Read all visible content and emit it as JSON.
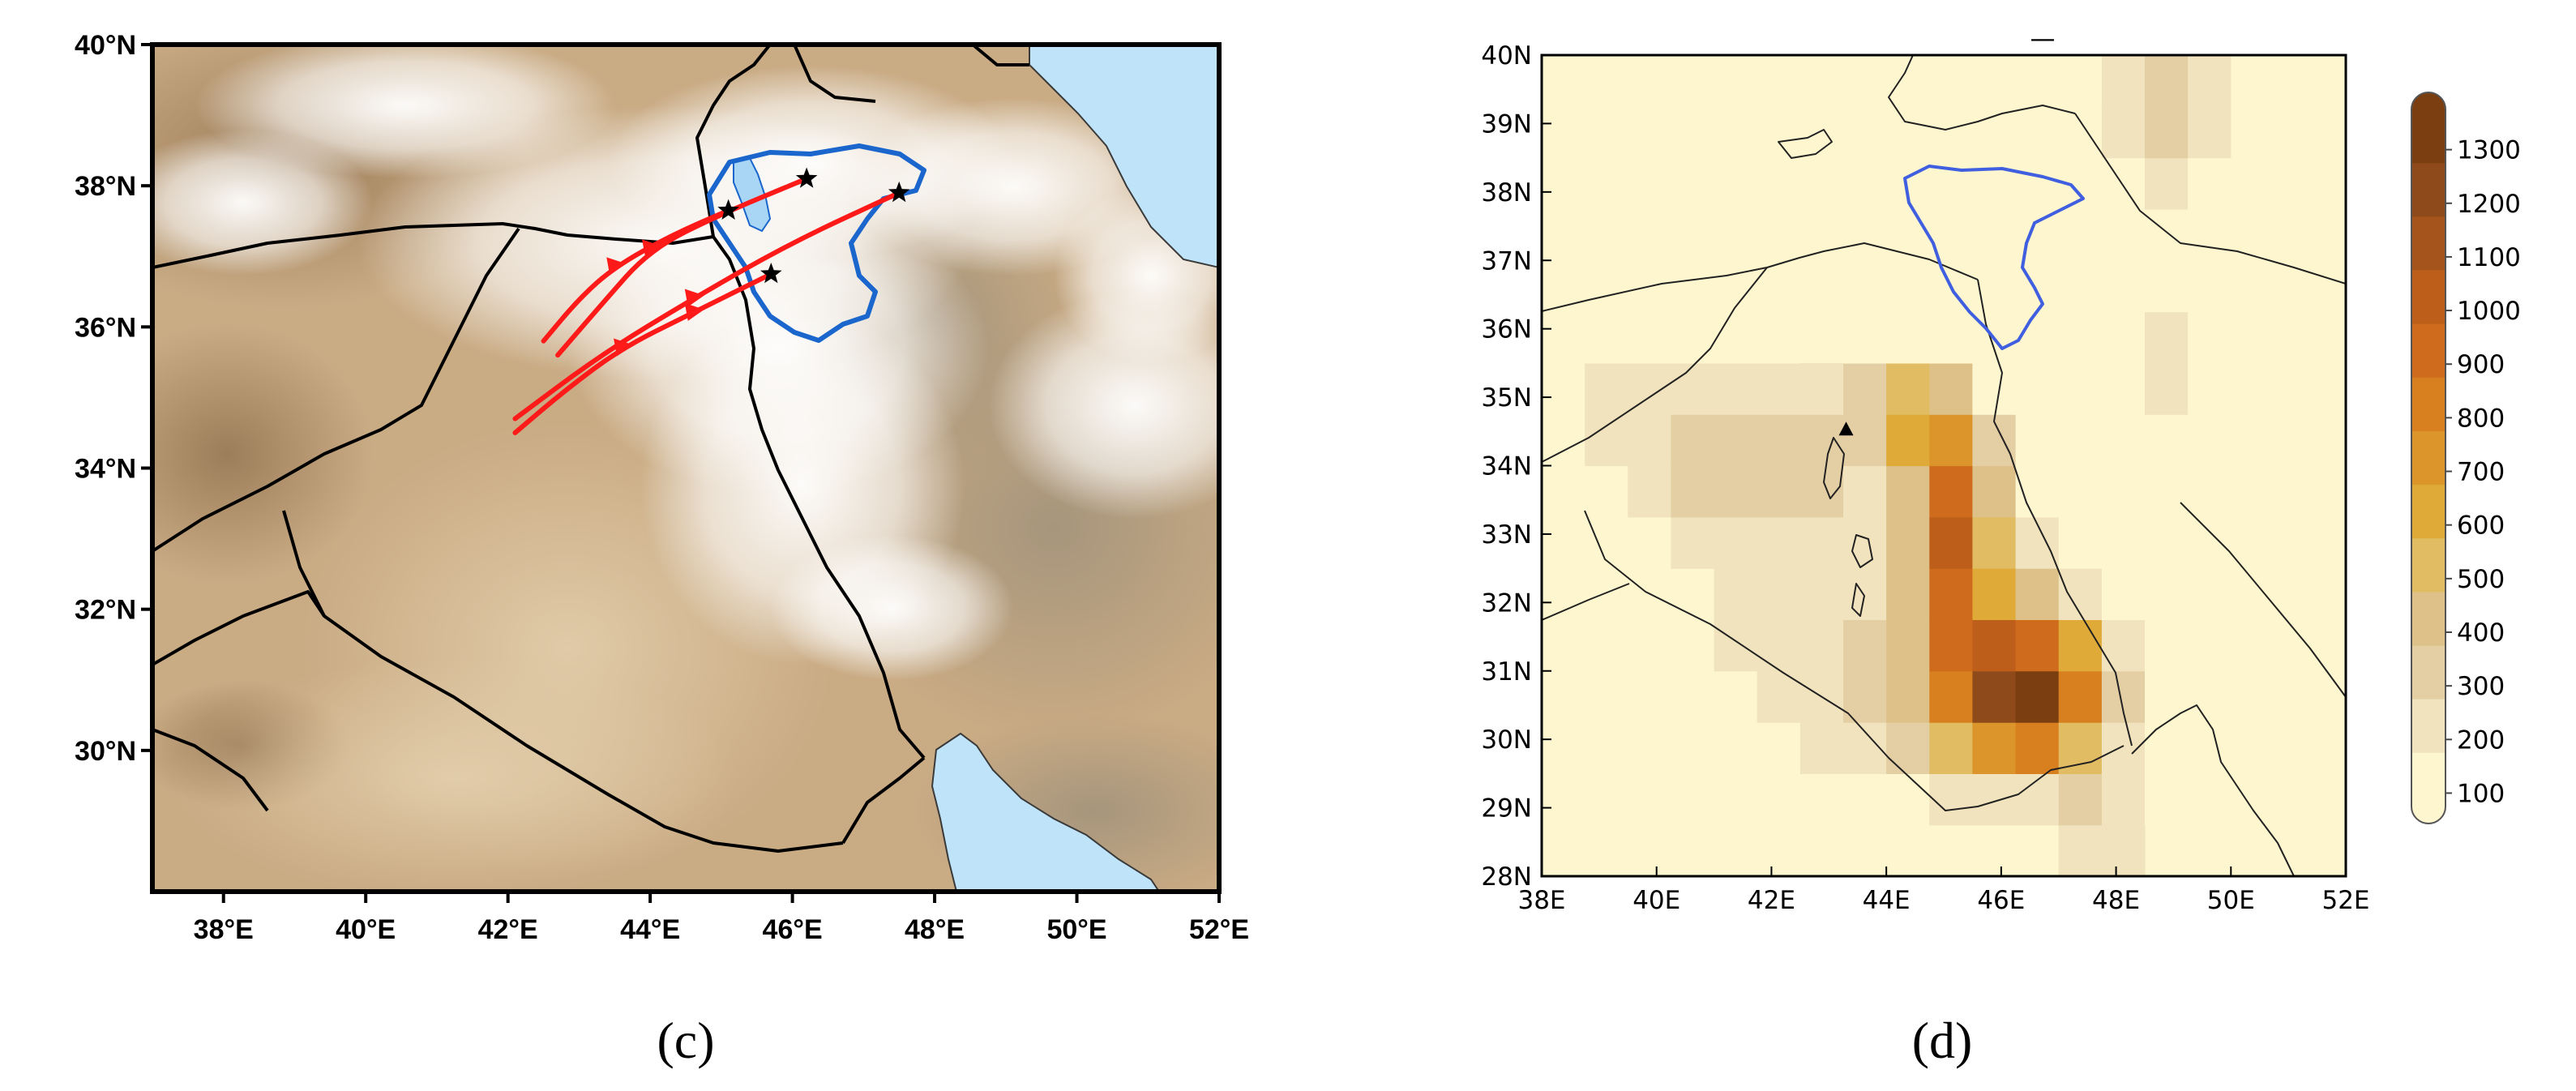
{
  "panel_c": {
    "label": "(c)",
    "x_ticks": [
      "38°E",
      "40°E",
      "42°E",
      "44°E",
      "46°E",
      "48°E",
      "50°E",
      "52°E"
    ],
    "y_ticks": [
      "40°N",
      "38°N",
      "36°N",
      "34°N",
      "32°N",
      "30°N"
    ],
    "extent": {
      "lon": [
        37,
        52
      ],
      "lat": [
        28,
        40
      ]
    },
    "colors": {
      "sand": "#c9ab84",
      "sea": "#bfe4fa",
      "cloud": "#ffffff",
      "trajectory": "#ff1a1a",
      "basin": "#1a66cc",
      "border": "#000000"
    },
    "trajectories": [
      {
        "points": [
          [
            42.1,
            34.5
          ],
          [
            42.8,
            35.1
          ],
          [
            43.6,
            35.7
          ],
          [
            44.6,
            36.2
          ],
          [
            45.7,
            36.75
          ]
        ],
        "markers": [
          [
            43.6,
            35.7
          ],
          [
            44.6,
            36.2
          ]
        ],
        "end": [
          45.7,
          36.75
        ]
      },
      {
        "points": [
          [
            42.1,
            34.7
          ],
          [
            43.3,
            35.6
          ],
          [
            44.6,
            36.4
          ],
          [
            46.0,
            37.2
          ],
          [
            47.5,
            37.9
          ]
        ],
        "markers": [
          [
            44.6,
            36.4
          ]
        ],
        "end": [
          47.5,
          37.9
        ]
      },
      {
        "points": [
          [
            42.7,
            35.6
          ],
          [
            43.3,
            36.3
          ],
          [
            44.0,
            37.1
          ],
          [
            45.0,
            37.6
          ],
          [
            46.2,
            38.1
          ]
        ],
        "markers": [
          [
            44.0,
            37.1
          ]
        ],
        "end": [
          46.2,
          38.1
        ]
      },
      {
        "points": [
          [
            42.5,
            35.8
          ],
          [
            43.0,
            36.4
          ],
          [
            43.5,
            36.85
          ],
          [
            44.3,
            37.3
          ],
          [
            45.1,
            37.65
          ]
        ],
        "markers": [
          [
            43.5,
            36.85
          ]
        ],
        "end": [
          45.1,
          37.65
        ]
      }
    ]
  },
  "panel_d": {
    "label": "(d)",
    "title_mark": "—",
    "x_ticks": [
      "38E",
      "40E",
      "42E",
      "44E",
      "46E",
      "48E",
      "50E",
      "52E"
    ],
    "y_ticks": [
      "40N",
      "39N",
      "38N",
      "37N",
      "36N",
      "35N",
      "34N",
      "33N",
      "32N",
      "31N",
      "30N",
      "29N",
      "28N"
    ],
    "extent": {
      "lon": [
        38,
        52
      ],
      "lat": [
        28,
        40
      ]
    },
    "grid_spacing_deg": 0.75,
    "site_marker": [
      43.3,
      34.5
    ],
    "colorbar_levels": [
      "1300",
      "1200",
      "1100",
      "1000",
      "900",
      "800",
      "700",
      "600",
      "500",
      "400",
      "300",
      "200",
      "100"
    ],
    "colorbar_colors": [
      "#7a3e10",
      "#8e4a1a",
      "#a5541c",
      "#bd5f1b",
      "#cf6b1c",
      "#d87f1f",
      "#dc952a",
      "#dfaa37",
      "#e1bc62",
      "#ddc188",
      "#e4cfa4",
      "#f1e3bd",
      "#fdf6cf"
    ],
    "basin_color": "#3f5fe0",
    "dust_hotspots": [
      {
        "lon": 46.4,
        "lat": 30.7,
        "value": 1150,
        "sx": 1.3,
        "sy": 1.1
      },
      {
        "lon": 45.2,
        "lat": 33.1,
        "value": 800,
        "sx": 0.75,
        "sy": 1.7
      },
      {
        "lon": 44.4,
        "lat": 34.8,
        "value": 420,
        "sx": 0.9,
        "sy": 0.8
      },
      {
        "lon": 41.6,
        "lat": 34.1,
        "value": 310,
        "sx": 2.0,
        "sy": 1.3
      },
      {
        "lon": 44.8,
        "lat": 31.2,
        "value": 260,
        "sx": 2.6,
        "sy": 2.4
      },
      {
        "lon": 49.5,
        "lat": 35.2,
        "value": 120,
        "sx": 2.0,
        "sy": 1.5
      },
      {
        "lon": 49.0,
        "lat": 39.3,
        "value": 260,
        "sx": 1.2,
        "sy": 1.1
      },
      {
        "lon": 48.2,
        "lat": 37.2,
        "value": 110,
        "sx": 1.5,
        "sy": 2.0
      },
      {
        "lon": 41.0,
        "lat": 31.5,
        "value": 110,
        "sx": 2.5,
        "sy": 2.0
      },
      {
        "lon": 47.8,
        "lat": 28.8,
        "value": 200,
        "sx": 0.8,
        "sy": 0.9
      },
      {
        "lon": 39.0,
        "lat": 35.0,
        "value": 110,
        "sx": 1.2,
        "sy": 1.2
      }
    ]
  }
}
